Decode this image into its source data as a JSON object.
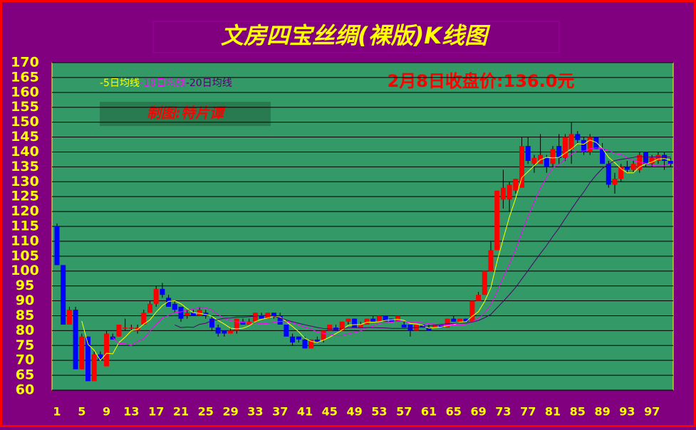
{
  "chart_data": {
    "type": "candlestick",
    "title": "文房四宝丝绸(裸版)K线图",
    "annotation": "2月8日收盘价:136.0元",
    "credit": "制图:特片谭",
    "up_color": "#ff0000",
    "down_color": "#0000ff",
    "grid": true,
    "ylim": [
      60,
      170
    ],
    "yticks": [
      60,
      65,
      70,
      75,
      80,
      85,
      90,
      95,
      100,
      105,
      110,
      115,
      120,
      125,
      130,
      135,
      140,
      145,
      150,
      155,
      160,
      165,
      170
    ],
    "xticks": [
      1,
      5,
      9,
      13,
      17,
      21,
      25,
      29,
      33,
      37,
      41,
      45,
      49,
      53,
      57,
      61,
      65,
      69,
      73,
      77,
      81,
      85,
      89,
      93,
      97
    ],
    "ma": [
      {
        "name": "-5日均线",
        "color": "#ffff00",
        "period": 5
      },
      {
        "name": "-10日均线",
        "color": "#ff00ff",
        "period": 10
      },
      {
        "name": "-20日均线",
        "color": "#500070",
        "period": 20
      }
    ],
    "ohlc": [
      [
        115,
        116,
        102,
        102
      ],
      [
        102,
        102,
        82,
        82
      ],
      [
        82,
        88,
        82,
        87
      ],
      [
        87,
        88,
        67,
        67
      ],
      [
        67,
        79,
        67,
        78
      ],
      [
        78,
        78,
        63,
        63
      ],
      [
        63,
        73,
        63,
        72
      ],
      [
        72,
        73,
        70,
        70
      ],
      [
        68,
        80,
        68,
        79
      ],
      [
        78,
        79,
        77,
        77
      ],
      [
        78,
        82,
        78,
        82
      ],
      [
        81,
        84,
        80,
        81
      ],
      [
        81,
        82,
        80,
        81
      ],
      [
        80,
        82,
        79,
        81
      ],
      [
        82,
        87,
        82,
        86
      ],
      [
        86,
        90,
        86,
        89
      ],
      [
        89,
        95,
        88,
        94
      ],
      [
        94,
        96,
        91,
        92
      ],
      [
        91,
        92,
        88,
        88
      ],
      [
        89,
        90,
        86,
        87
      ],
      [
        88,
        88,
        83,
        84
      ],
      [
        85,
        87,
        84,
        86
      ],
      [
        86,
        87,
        85,
        85
      ],
      [
        85,
        88,
        85,
        87
      ],
      [
        86,
        87,
        84,
        85
      ],
      [
        84,
        85,
        80,
        81
      ],
      [
        81,
        82,
        78,
        79
      ],
      [
        80,
        80,
        78,
        79
      ],
      [
        79,
        81,
        79,
        80
      ],
      [
        80,
        84,
        79,
        84
      ],
      [
        83,
        84,
        82,
        82
      ],
      [
        82,
        84,
        82,
        83
      ],
      [
        83,
        86,
        83,
        86
      ],
      [
        85,
        86,
        84,
        84
      ],
      [
        84,
        86,
        84,
        86
      ],
      [
        86,
        86,
        84,
        85
      ],
      [
        85,
        86,
        82,
        82
      ],
      [
        82,
        82,
        78,
        78
      ],
      [
        78,
        79,
        75,
        76
      ],
      [
        78,
        78,
        76,
        77
      ],
      [
        77,
        78,
        74,
        74
      ],
      [
        74,
        77,
        74,
        77
      ],
      [
        77,
        78,
        76,
        76
      ],
      [
        77,
        80,
        76,
        80
      ],
      [
        80,
        82,
        80,
        82
      ],
      [
        81,
        82,
        80,
        80
      ],
      [
        80,
        83,
        80,
        83
      ],
      [
        83,
        84,
        82,
        84
      ],
      [
        84,
        84,
        81,
        81
      ],
      [
        81,
        83,
        81,
        82
      ],
      [
        82,
        84,
        82,
        84
      ],
      [
        84,
        85,
        83,
        83
      ],
      [
        83,
        85,
        83,
        85
      ],
      [
        85,
        85,
        83,
        83
      ],
      [
        84,
        84,
        83,
        83
      ],
      [
        83,
        85,
        83,
        85
      ],
      [
        82,
        83,
        81,
        81
      ],
      [
        82,
        82,
        78,
        80
      ],
      [
        80,
        82,
        80,
        82
      ],
      [
        82,
        82,
        81,
        81
      ],
      [
        81,
        82,
        80,
        80
      ],
      [
        81,
        82,
        81,
        82
      ],
      [
        82,
        82,
        81,
        81
      ],
      [
        81,
        84,
        81,
        84
      ],
      [
        84,
        85,
        83,
        83
      ],
      [
        83,
        84,
        83,
        84
      ],
      [
        84,
        84,
        83,
        83
      ],
      [
        83,
        90,
        83,
        90
      ],
      [
        90,
        93,
        90,
        92
      ],
      [
        92,
        100,
        92,
        100
      ],
      [
        100,
        110,
        100,
        107
      ],
      [
        107,
        127,
        107,
        127
      ],
      [
        124,
        134,
        121,
        128
      ],
      [
        124,
        130,
        120,
        129
      ],
      [
        127,
        131,
        126,
        131
      ],
      [
        128,
        145,
        128,
        142
      ],
      [
        142,
        145,
        136,
        137
      ],
      [
        136,
        139,
        133,
        138
      ],
      [
        136,
        146,
        136,
        139
      ],
      [
        138,
        139,
        133,
        135
      ],
      [
        136,
        142,
        135,
        141
      ],
      [
        142,
        146,
        136,
        138
      ],
      [
        138,
        146,
        137,
        145
      ],
      [
        141,
        150,
        136,
        146
      ],
      [
        146,
        147,
        143,
        144
      ],
      [
        144,
        145,
        139,
        140
      ],
      [
        140,
        146,
        139,
        145
      ],
      [
        145,
        145,
        141,
        141
      ],
      [
        141,
        143,
        136,
        136
      ],
      [
        136,
        137,
        128,
        129
      ],
      [
        129,
        133,
        126,
        131
      ],
      [
        131,
        136,
        130,
        135
      ],
      [
        135,
        137,
        133,
        134
      ],
      [
        134,
        137,
        133,
        136
      ],
      [
        134,
        140,
        133,
        139
      ],
      [
        140,
        140,
        135,
        136
      ],
      [
        136,
        139,
        135,
        138
      ],
      [
        137,
        140,
        136,
        139
      ],
      [
        139,
        140,
        134,
        137
      ],
      [
        137,
        138,
        135,
        136
      ]
    ]
  }
}
